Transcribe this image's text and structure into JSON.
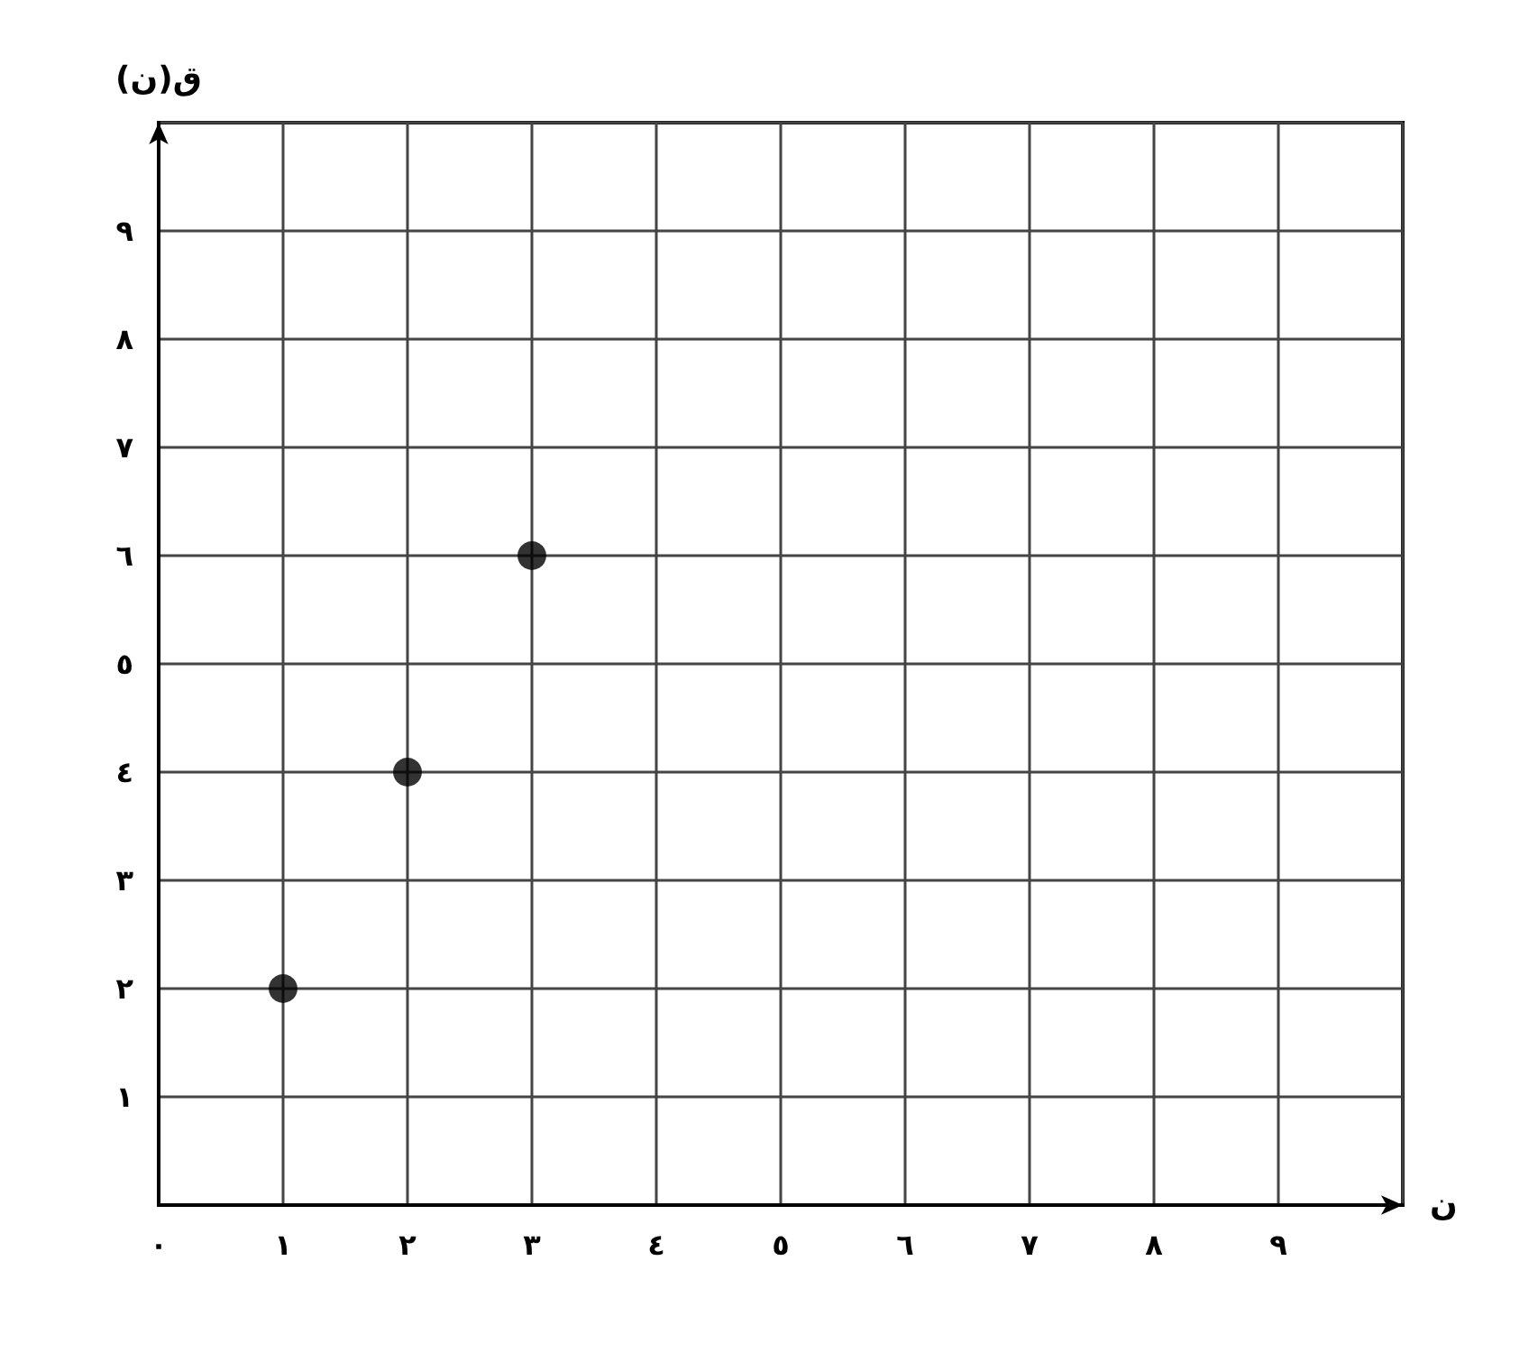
{
  "chart_data": {
    "type": "scatter",
    "xlabel": "ن",
    "ylabel": "ق(ن)",
    "x": [
      1,
      2,
      3
    ],
    "values": [
      2,
      4,
      6
    ],
    "color": "#000000",
    "marker": "circle",
    "grid": true,
    "xlim": [
      0,
      10
    ],
    "ylim": [
      0,
      10
    ],
    "xticks": [
      {
        "value": 0,
        "label": "٠"
      },
      {
        "value": 1,
        "label": "١"
      },
      {
        "value": 2,
        "label": "٢"
      },
      {
        "value": 3,
        "label": "٣"
      },
      {
        "value": 4,
        "label": "٤"
      },
      {
        "value": 5,
        "label": "٥"
      },
      {
        "value": 6,
        "label": "٦"
      },
      {
        "value": 7,
        "label": "٧"
      },
      {
        "value": 8,
        "label": "٨"
      },
      {
        "value": 9,
        "label": "٩"
      }
    ],
    "yticks": [
      {
        "value": 1,
        "label": "١"
      },
      {
        "value": 2,
        "label": "٢"
      },
      {
        "value": 3,
        "label": "٣"
      },
      {
        "value": 4,
        "label": "٤"
      },
      {
        "value": 5,
        "label": "٥"
      },
      {
        "value": 6,
        "label": "٦"
      },
      {
        "value": 7,
        "label": "٧"
      },
      {
        "value": 8,
        "label": "٨"
      },
      {
        "value": 9,
        "label": "٩"
      }
    ]
  }
}
